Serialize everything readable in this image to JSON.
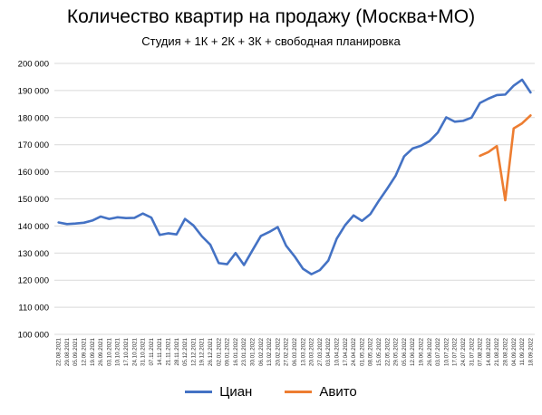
{
  "chart_data": {
    "type": "line",
    "title": "Количество квартир на продажу (Москва+МО)",
    "subtitle": "Студия + 1К + 2К + 3К + свободная планировка",
    "xlabel": "",
    "ylabel": "",
    "ylim": [
      100000,
      200000
    ],
    "yticks": [
      "100 000",
      "110 000",
      "120 000",
      "130 000",
      "140 000",
      "150 000",
      "160 000",
      "170 000",
      "180 000",
      "190 000",
      "200 000"
    ],
    "grid": true,
    "legend_position": "bottom",
    "categories": [
      "22.08.2021",
      "29.08.2021",
      "05.09.2021",
      "12.09.2021",
      "19.09.2021",
      "26.09.2021",
      "03.10.2021",
      "10.10.2021",
      "17.10.2021",
      "24.10.2021",
      "31.10.2021",
      "07.11.2021",
      "14.11.2021",
      "21.11.2021",
      "28.11.2021",
      "05.12.2021",
      "12.12.2021",
      "19.12.2021",
      "26.12.2021",
      "02.01.2022",
      "09.01.2022",
      "16.01.2022",
      "23.01.2022",
      "30.01.2022",
      "06.02.2022",
      "13.02.2022",
      "20.02.2022",
      "27.02.2022",
      "06.03.2022",
      "13.03.2022",
      "20.03.2022",
      "27.03.2022",
      "03.04.2022",
      "10.04.2022",
      "17.04.2022",
      "24.04.2022",
      "01.05.2022",
      "08.05.2022",
      "15.05.2022",
      "22.05.2022",
      "29.05.2022",
      "05.06.2022",
      "12.06.2022",
      "19.06.2022",
      "26.06.2022",
      "03.07.2022",
      "10.07.2022",
      "17.07.2022",
      "24.07.2022",
      "31.07.2022",
      "07.08.2022",
      "14.08.2022",
      "21.08.2022",
      "28.08.2022",
      "04.09.2022",
      "11.09.2022",
      "18.09.2022"
    ],
    "series": [
      {
        "name": "Циан",
        "color": "#4472C4",
        "values": [
          141300,
          140700,
          140900,
          141200,
          142000,
          143500,
          142600,
          143200,
          142900,
          143000,
          144600,
          143100,
          136700,
          137300,
          136900,
          142600,
          140200,
          136200,
          133100,
          126300,
          125900,
          130000,
          125600,
          131000,
          136300,
          137800,
          139600,
          132700,
          128800,
          124200,
          122200,
          123700,
          127200,
          135300,
          140300,
          143900,
          141900,
          144400,
          149300,
          153800,
          158600,
          165700,
          168600,
          169600,
          171300,
          174500,
          180100,
          178500,
          178800,
          180000,
          185400,
          187000,
          188300,
          188500,
          191800,
          194000,
          189300
        ]
      },
      {
        "name": "Авито",
        "color": "#ED7D31",
        "values": [
          null,
          null,
          null,
          null,
          null,
          null,
          null,
          null,
          null,
          null,
          null,
          null,
          null,
          null,
          null,
          null,
          null,
          null,
          null,
          null,
          null,
          null,
          null,
          null,
          null,
          null,
          null,
          null,
          null,
          null,
          null,
          null,
          null,
          null,
          null,
          null,
          null,
          null,
          null,
          null,
          null,
          null,
          null,
          null,
          null,
          null,
          null,
          null,
          null,
          null,
          165900,
          167300,
          169500,
          149500,
          176000,
          177900,
          180800
        ]
      }
    ]
  }
}
